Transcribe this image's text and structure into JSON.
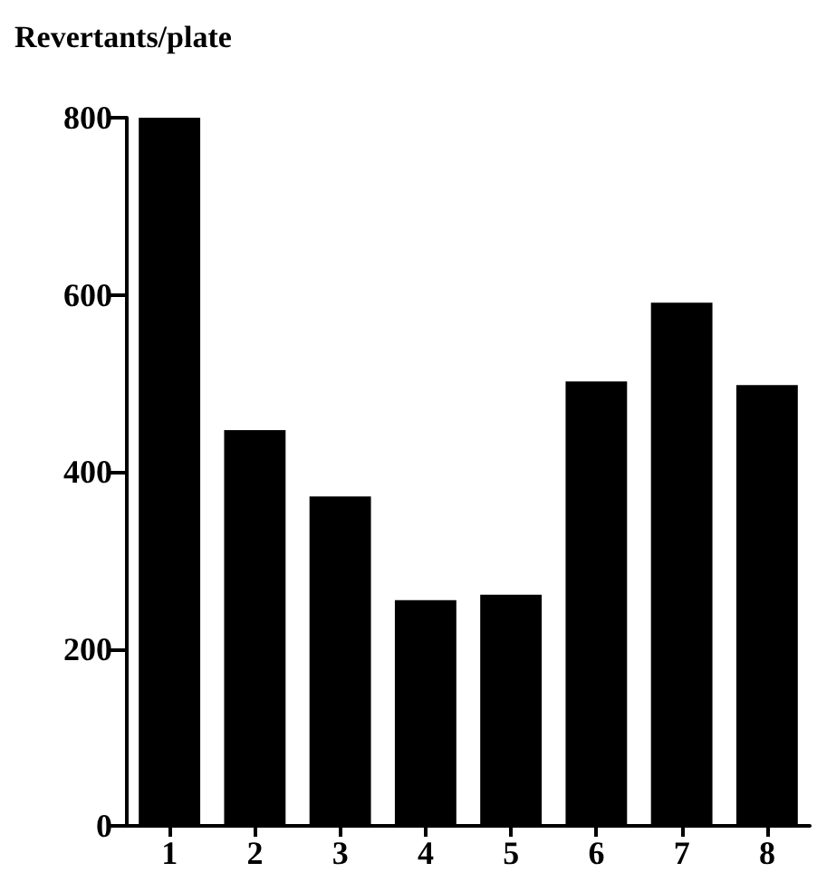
{
  "chart_data": {
    "type": "bar",
    "ylabel": "Revertants/plate",
    "categories": [
      "1",
      "2",
      "3",
      "4",
      "5",
      "6",
      "7",
      "8"
    ],
    "values": [
      800,
      447,
      372,
      255,
      261,
      502,
      591,
      498
    ],
    "color": "#000000",
    "ylim": [
      0,
      800
    ],
    "yticks": [
      0,
      200,
      400,
      600,
      800
    ],
    "grid": false
  }
}
